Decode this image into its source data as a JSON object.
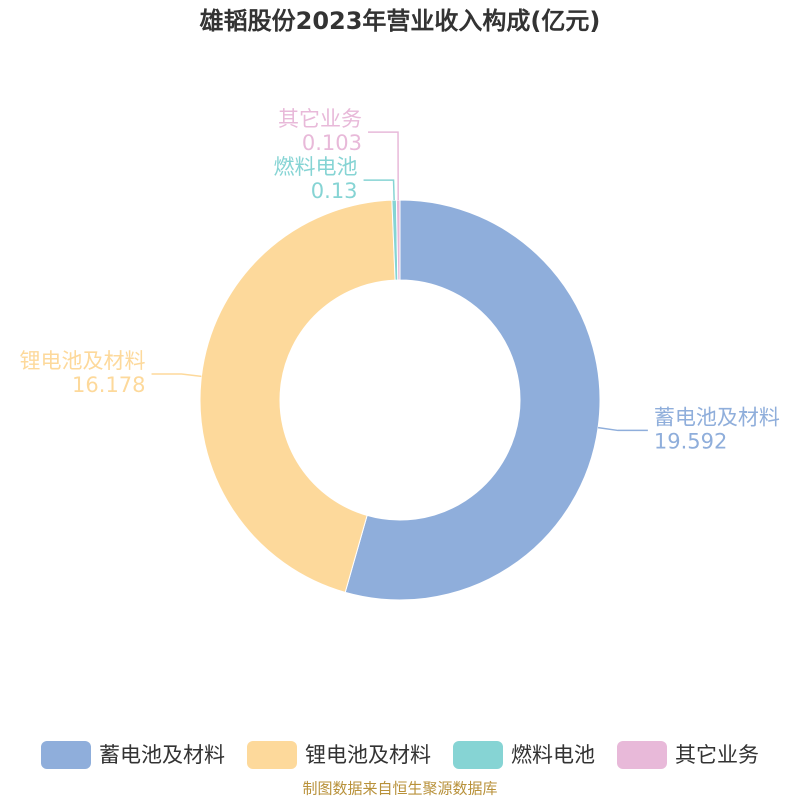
{
  "chart_data": {
    "type": "donut",
    "title": "雄韬股份2023年营业收入构成(亿元)",
    "categories": [
      "蓄电池及材料",
      "锂电池及材料",
      "燃料电池",
      "其它业务"
    ],
    "values": [
      19.592,
      16.178,
      0.13,
      0.103
    ],
    "colors": [
      "#8faedb",
      "#fdd99b",
      "#86d4d4",
      "#e8b9d9"
    ],
    "source": "制图数据来自恒生聚源数据库"
  }
}
